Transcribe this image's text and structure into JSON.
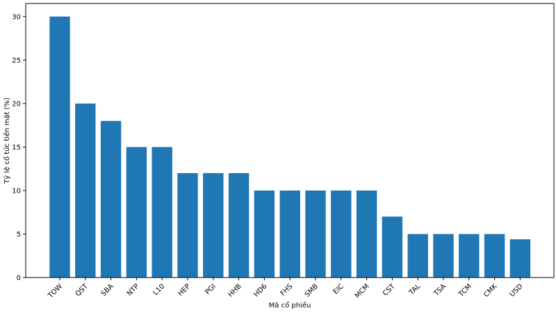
{
  "chart_data": {
    "type": "bar",
    "title": "",
    "xlabel": "Mã cổ phiếu",
    "ylabel": "Tỷ lệ cổ tức tiền mặt (%)",
    "ylim": [
      0,
      31.5
    ],
    "yticks": [
      0,
      5,
      10,
      15,
      20,
      25,
      30
    ],
    "grid": false,
    "bar_color": "#1f77b4",
    "categories": [
      "TOW",
      "QST",
      "SBA",
      "NTP",
      "L10",
      "HEP",
      "PGI",
      "HHB",
      "HD6",
      "FHS",
      "SMB",
      "EIC",
      "MCM",
      "CST",
      "TAL",
      "TSA",
      "TCM",
      "CMK",
      "USD"
    ],
    "values": [
      30,
      20,
      18,
      15,
      15,
      12,
      12,
      12,
      10,
      10,
      10,
      10,
      10,
      7,
      5,
      5,
      5,
      5,
      4.4
    ]
  }
}
